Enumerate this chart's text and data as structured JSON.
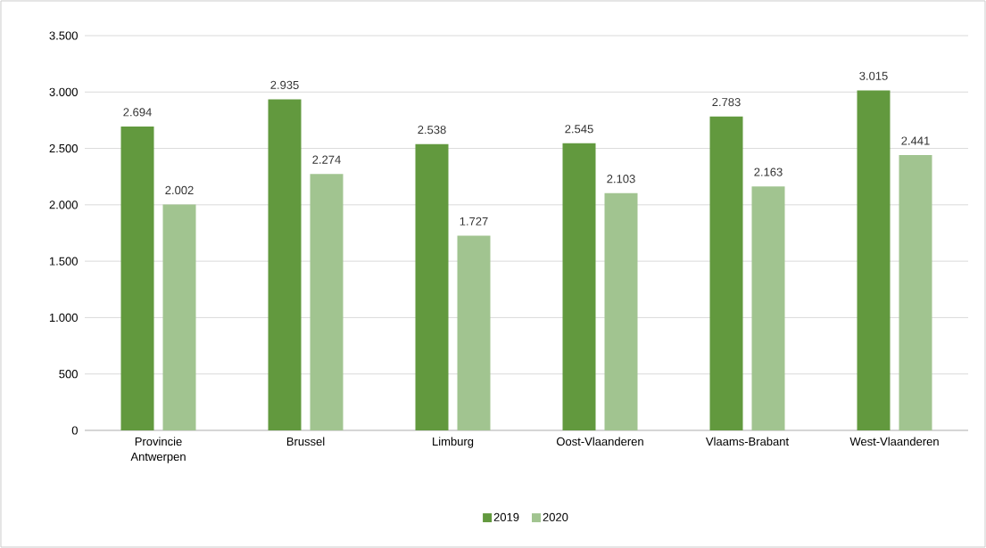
{
  "chart_data": {
    "type": "bar",
    "categories": [
      "Provincie Antwerpen",
      "Brussel",
      "Limburg",
      "Oost-Vlaanderen",
      "Vlaams-Brabant",
      "West-Vlaanderen"
    ],
    "series": [
      {
        "name": "2019",
        "color": "#62993e",
        "values": [
          2694,
          2935,
          2538,
          2545,
          2783,
          3015
        ],
        "value_labels": [
          "2.694",
          "2.935",
          "2.538",
          "2.545",
          "2.783",
          "3.015"
        ]
      },
      {
        "name": "2020",
        "color": "#a1c490",
        "values": [
          2002,
          2274,
          1727,
          2103,
          2163,
          2441
        ],
        "value_labels": [
          "2.002",
          "2.274",
          "1.727",
          "2.103",
          "2.163",
          "2.441"
        ]
      }
    ],
    "ylim": [
      0,
      3500
    ],
    "yticks": [
      0,
      {
        "value": 500,
        "label": "500"
      },
      {
        "value": 1000,
        "label": "1.000"
      },
      {
        "value": 1500,
        "label": "1.500"
      },
      {
        "value": 2000,
        "label": "2.000"
      },
      {
        "value": 2500,
        "label": "2.500"
      },
      {
        "value": 3000,
        "label": "3.000"
      },
      {
        "value": 3500,
        "label": "3.500"
      }
    ],
    "grid": "y",
    "legend": "bottom"
  }
}
